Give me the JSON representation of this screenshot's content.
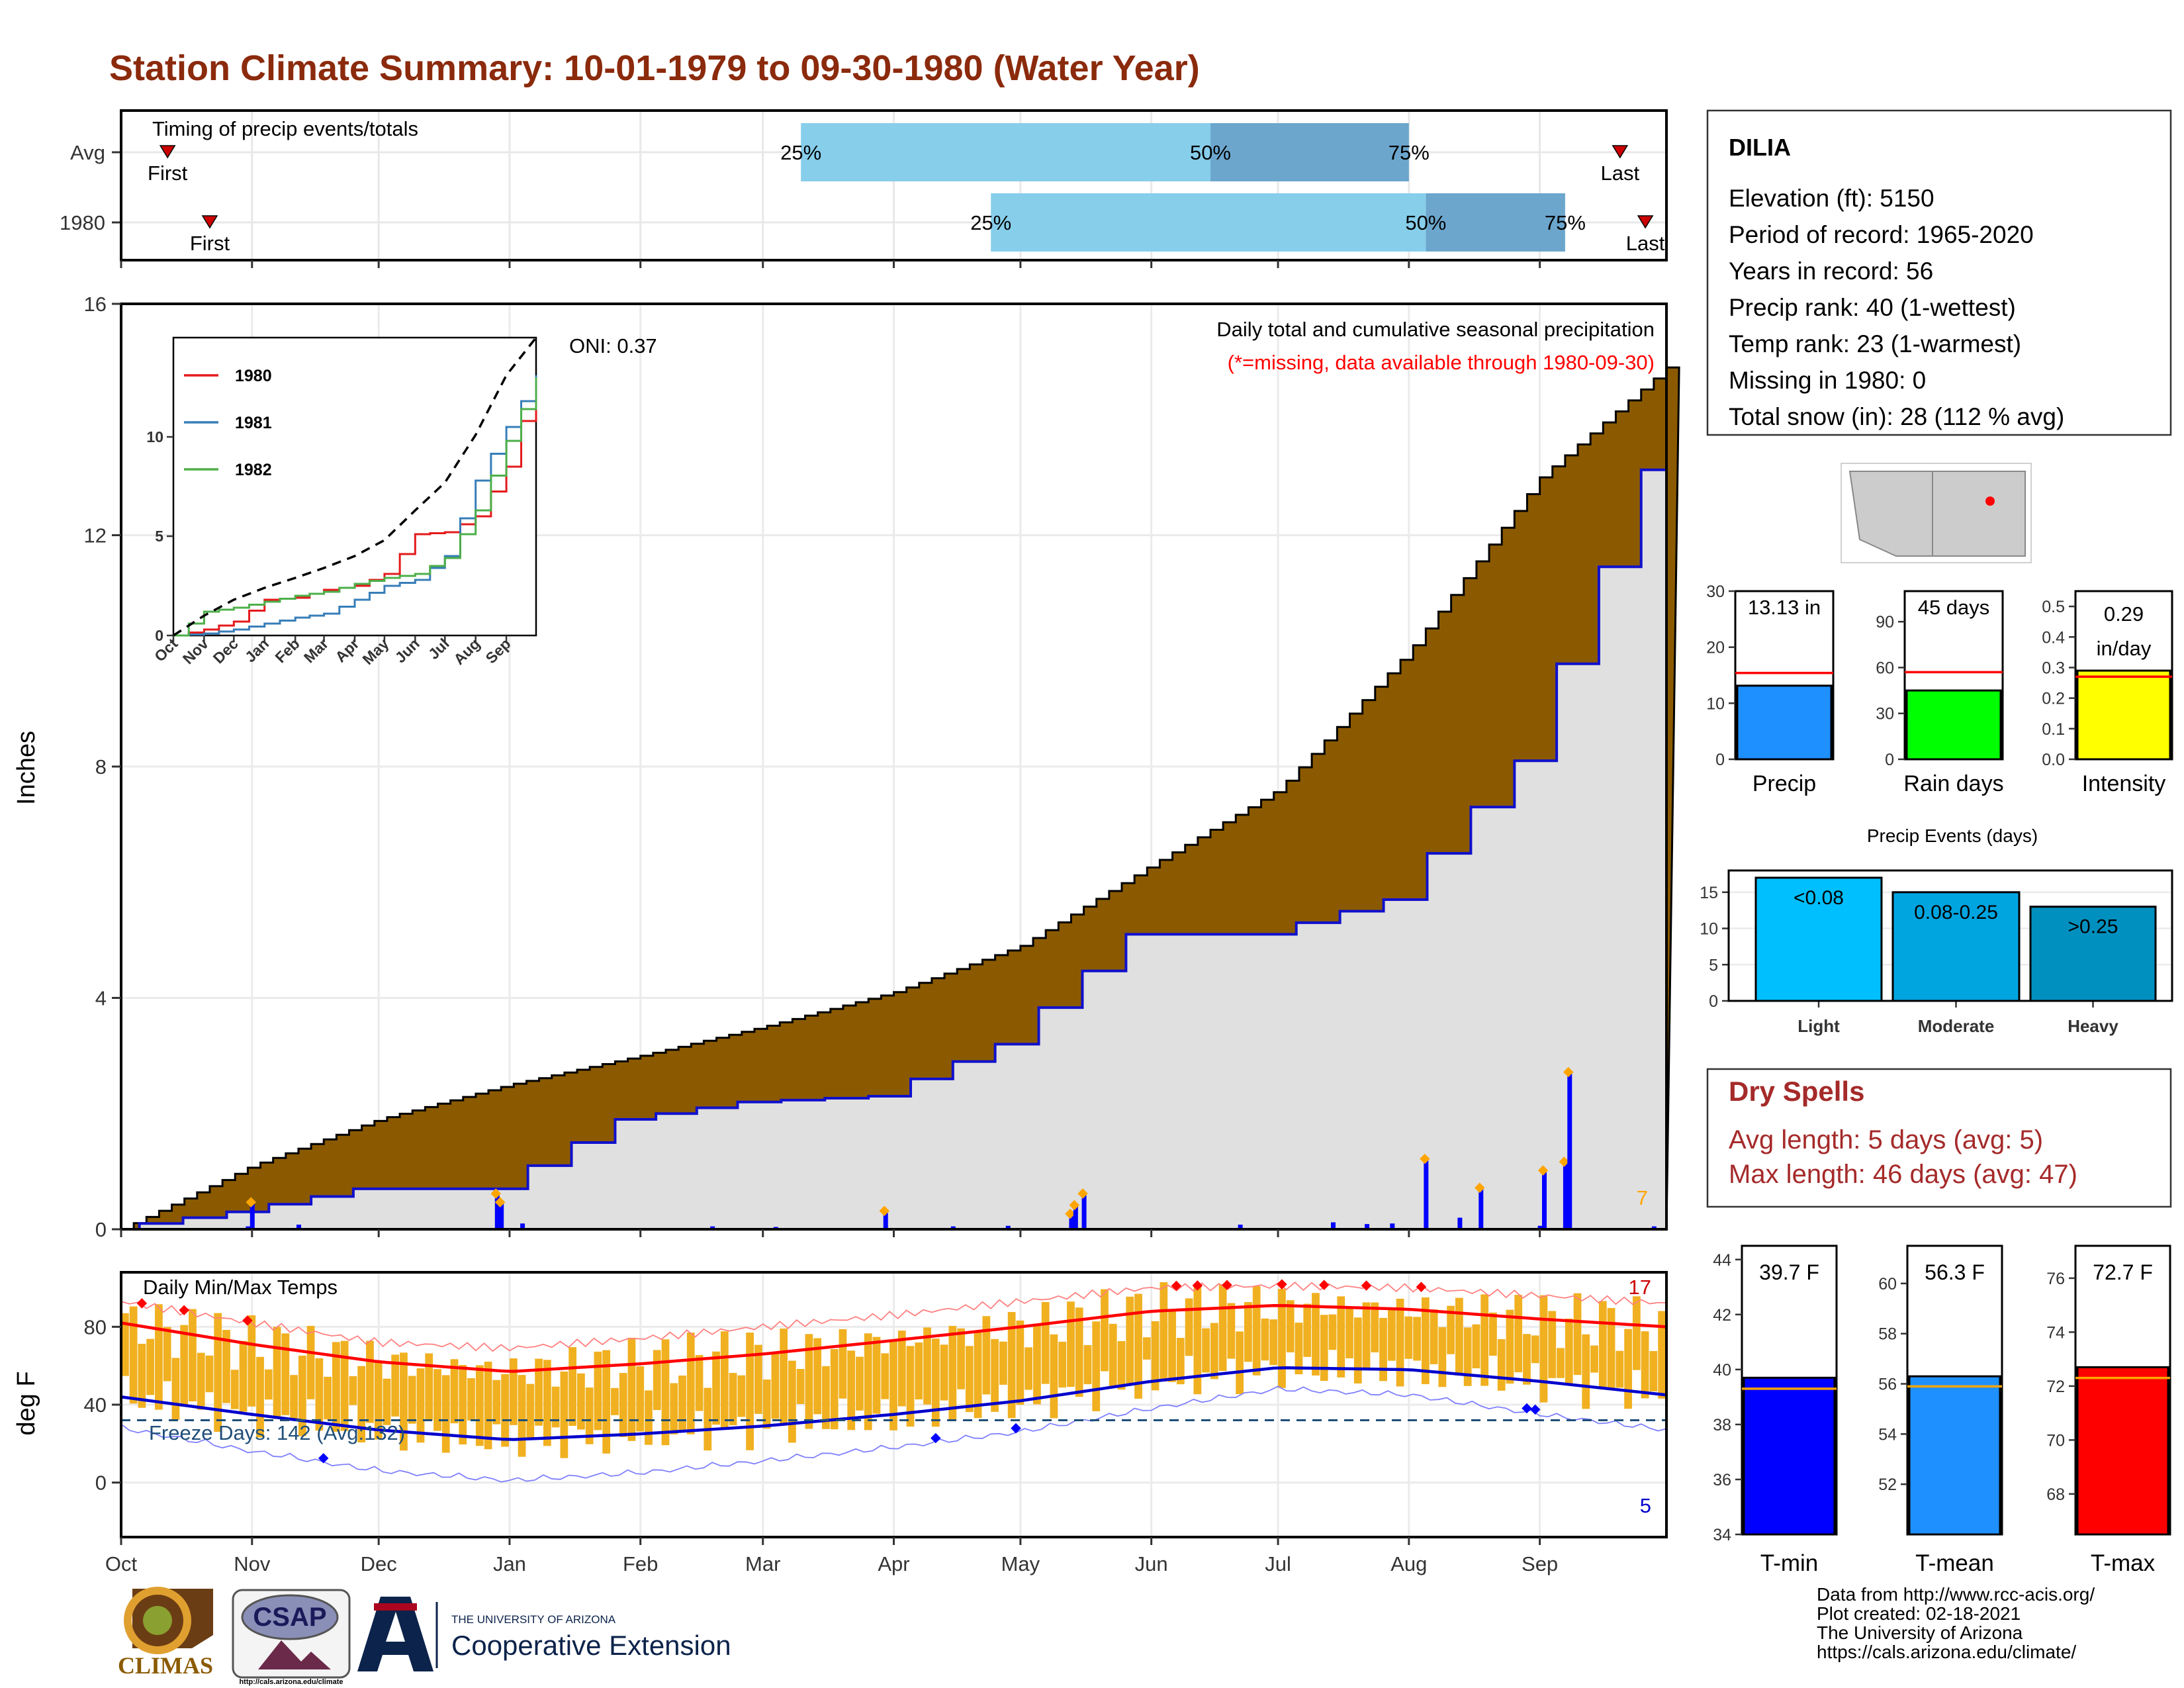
{
  "title": "Station Climate Summary: 10-01-1979 to 09-30-1980 (Water Year)",
  "timing": {
    "label": "Timing of precip events/totals",
    "rows": [
      {
        "name": "Avg",
        "first_label": "First",
        "last_label": "Last",
        "p25": "25%",
        "p50": "50%",
        "p75": "75%",
        "first": "Oct 12",
        "last": "Sep 20",
        "q25": "Mar 10",
        "q50": "Jun 15",
        "q75": "Aug 1"
      },
      {
        "name": "1980",
        "first_label": "First",
        "last_label": "Last",
        "p25": "25%",
        "p50": "50%",
        "p75": "75%",
        "first": "Oct 22",
        "last": "Sep 26",
        "q25": "Apr 24",
        "q50": "Aug 5",
        "q75": "Sep 7"
      }
    ]
  },
  "precip_panel": {
    "ylabel": "Inches",
    "yticks": [
      "0",
      "4",
      "8",
      "12",
      "16"
    ],
    "title": "Daily total and cumulative seasonal precipitation",
    "subtitle": "(*=missing, data available through 1980-09-30)",
    "oni": "ONI: 0.37",
    "corner_count": "7",
    "colors": {
      "avg_fill": "#8b5a00",
      "obs_fill": "#e0e0e0",
      "obs_line": "#1010cc",
      "daily_bar": "#0000ff",
      "extreme": "#ffa500",
      "subtitle": "#ff0000"
    }
  },
  "inset": {
    "series": [
      {
        "name": "1980",
        "color": "#e41a1c"
      },
      {
        "name": "1981",
        "color": "#377eb8"
      },
      {
        "name": "1982",
        "color": "#4daf4a"
      }
    ],
    "yticks": [
      "0",
      "5",
      "10"
    ],
    "xticks": [
      "Oct",
      "Nov",
      "Dec",
      "Jan",
      "Feb",
      "Mar",
      "Apr",
      "May",
      "Jun",
      "Jul",
      "Aug",
      "Sep"
    ]
  },
  "temp_panel": {
    "ylabel": "deg F",
    "label": "Daily Min/Max Temps",
    "yticks": [
      "0",
      "40",
      "80"
    ],
    "freeze": "Freeze Days: 142 (Avg:132)",
    "hot_count": "17",
    "cold_count": "5"
  },
  "xaxis": {
    "months": [
      "Oct",
      "Nov",
      "Dec",
      "Jan",
      "Feb",
      "Mar",
      "Apr",
      "May",
      "Jun",
      "Jul",
      "Aug",
      "Sep"
    ]
  },
  "station": {
    "name": "DILIA",
    "lines": [
      "Elevation (ft): 5150",
      "Period of record: 1965-2020",
      "Years in record: 56",
      "Precip rank: 40 (1-wettest)",
      "Temp rank: 23 (1-warmest)",
      "Missing in 1980: 0",
      "Total snow (in): 28 (112 % avg)"
    ]
  },
  "summary_bars": [
    {
      "label": "Precip",
      "value_text": "13.13 in",
      "value": 13.13,
      "avg": 15.4,
      "ymax": 30,
      "yticks": [
        "0",
        "10",
        "20",
        "30"
      ],
      "color": "#1e90ff"
    },
    {
      "label": "Rain days",
      "value_text": "45 days",
      "value": 45,
      "avg": 57,
      "ymax": 110,
      "yticks": [
        "0",
        "30",
        "60",
        "90"
      ],
      "color": "#00ff00"
    },
    {
      "label": "Intensity",
      "value_text_1": "0.29",
      "value_text_2": "in/day",
      "value": 0.29,
      "avg": 0.27,
      "ymax": 0.55,
      "yticks": [
        "0.0",
        "0.1",
        "0.2",
        "0.3",
        "0.4",
        "0.5"
      ],
      "color": "#ffff00"
    }
  ],
  "precip_events": {
    "title": "Precip Events (days)",
    "yticks": [
      "0",
      "5",
      "10",
      "15"
    ],
    "categories": [
      "Light",
      "Moderate",
      "Heavy"
    ],
    "labels": [
      "<0.08",
      "0.08-0.25",
      ">0.25"
    ],
    "values": [
      17,
      15,
      13
    ],
    "colors": [
      "#00bfff",
      "#00a5e0",
      "#0090c0"
    ]
  },
  "dry_spells": {
    "title": "Dry Spells",
    "avg_line": "Avg length: 5 days (avg: 5)",
    "max_line": "Max length: 46 days (avg: 47)"
  },
  "temp_bars": [
    {
      "label": "T-min",
      "value_text": "39.7 F",
      "value": 39.7,
      "avg": 39.3,
      "ymin": 34,
      "ymax": 44.5,
      "yticks": [
        "34",
        "36",
        "38",
        "40",
        "42",
        "44"
      ],
      "color": "#0000ff"
    },
    {
      "label": "T-mean",
      "value_text": "56.3 F",
      "value": 56.3,
      "avg": 55.9,
      "ymin": 50,
      "ymax": 61.5,
      "yticks": [
        "52",
        "54",
        "56",
        "58",
        "60"
      ],
      "color": "#1e90ff"
    },
    {
      "label": "T-max",
      "value_text": "72.7 F",
      "value": 72.7,
      "avg": 72.3,
      "ymin": 66.5,
      "ymax": 77.2,
      "yticks": [
        "68",
        "70",
        "72",
        "74",
        "76"
      ],
      "color": "#ff0000"
    }
  ],
  "logos": {
    "climas": "CLIMAS",
    "csap": "CSAP",
    "csap_url": "http://cals.arizona.edu/climate",
    "ua_small": "THE UNIVERSITY OF ARIZONA",
    "ua_big": "Cooperative Extension"
  },
  "footer": [
    "Data from http://www.rcc-acis.org/",
    "Plot created: 02-18-2021",
    "The University of Arizona",
    "https://cals.arizona.edu/climate/"
  ],
  "chart_data": [
    {
      "type": "area",
      "title": "Daily total and cumulative seasonal precipitation",
      "ylabel": "Inches",
      "ylim": [
        0,
        16
      ],
      "x": [
        "Oct",
        "Nov",
        "Dec",
        "Jan",
        "Feb",
        "Mar",
        "Apr",
        "May",
        "Jun",
        "Jul",
        "Aug",
        "Sep",
        "Sep 30"
      ],
      "series": [
        {
          "name": "Avg cumulative",
          "values": [
            0,
            1.1,
            1.9,
            2.5,
            3.0,
            3.5,
            4.1,
            4.9,
            6.3,
            7.6,
            10.0,
            13.0,
            14.9
          ]
        },
        {
          "name": "1980 cumulative",
          "values": [
            0,
            0.3,
            0.7,
            0.7,
            1.9,
            2.2,
            2.3,
            3.2,
            5.1,
            5.1,
            5.7,
            8.1,
            13.13
          ]
        }
      ],
      "daily_events": [
        {
          "date": "Nov 1",
          "value": 0.45
        },
        {
          "date": "Dec 29",
          "value": 0.6
        },
        {
          "date": "Dec 30",
          "value": 0.45
        },
        {
          "date": "Mar 30",
          "value": 0.3
        },
        {
          "date": "Apr 15",
          "value": 0.05
        },
        {
          "date": "May 13",
          "value": 0.25
        },
        {
          "date": "May 14",
          "value": 0.4
        },
        {
          "date": "May 16",
          "value": 0.6
        },
        {
          "date": "Aug 5",
          "value": 1.2
        },
        {
          "date": "Aug 13",
          "value": 0.2
        },
        {
          "date": "Aug 18",
          "value": 0.7
        },
        {
          "date": "Sep 2",
          "value": 1.0
        },
        {
          "date": "Sep 7",
          "value": 1.15
        },
        {
          "date": "Sep 8",
          "value": 2.7
        }
      ]
    },
    {
      "type": "line",
      "title": "",
      "xlabel": "",
      "ylabel": "",
      "ylim": [
        0,
        15
      ],
      "x": [
        "Oct",
        "Nov",
        "Dec",
        "Jan",
        "Feb",
        "Mar",
        "Apr",
        "May",
        "Jun",
        "Jul",
        "Aug",
        "Sep",
        "Sep 30"
      ],
      "series": [
        {
          "name": "1980",
          "values": [
            0,
            0.3,
            0.7,
            1.8,
            1.9,
            2.3,
            2.5,
            3.1,
            5.1,
            5.2,
            6.0,
            8.5,
            13.1
          ]
        },
        {
          "name": "1981",
          "values": [
            0,
            0.1,
            0.3,
            0.6,
            0.9,
            1.1,
            1.8,
            2.5,
            2.8,
            4.0,
            7.8,
            10.5,
            13.1
          ]
        },
        {
          "name": "1982",
          "values": [
            0,
            1.2,
            1.4,
            1.7,
            2.0,
            2.2,
            2.6,
            2.9,
            3.1,
            3.9,
            6.3,
            9.8,
            13.0
          ]
        },
        {
          "name": "Avg",
          "values": [
            0,
            1.0,
            1.8,
            2.4,
            2.9,
            3.4,
            4.0,
            4.8,
            6.3,
            7.7,
            10.1,
            13.1,
            15.0
          ]
        }
      ]
    },
    {
      "type": "line",
      "title": "Daily Min/Max Temps",
      "ylabel": "deg F",
      "ylim": [
        -28,
        108
      ],
      "x": [
        "Oct",
        "Nov",
        "Dec",
        "Jan",
        "Feb",
        "Mar",
        "Apr",
        "May",
        "Jun",
        "Jul",
        "Aug",
        "Sep",
        "Sep 30"
      ],
      "series": [
        {
          "name": "Avg max",
          "values": [
            82,
            71,
            62,
            57,
            61,
            66,
            73,
            80,
            88,
            91,
            89,
            84,
            80
          ]
        },
        {
          "name": "Avg min",
          "values": [
            44,
            35,
            27,
            22,
            25,
            29,
            35,
            42,
            52,
            59,
            58,
            52,
            45
          ]
        },
        {
          "name": "Record max",
          "values": [
            93,
            82,
            72,
            69,
            74,
            80,
            86,
            93,
            100,
            101,
            100,
            96,
            92
          ]
        },
        {
          "name": "Record min",
          "values": [
            30,
            18,
            8,
            3,
            7,
            13,
            20,
            28,
            40,
            50,
            47,
            37,
            29
          ]
        }
      ],
      "freeze_threshold": 32
    },
    {
      "type": "bar",
      "categories": [
        "Precip",
        "Rain days",
        "Intensity"
      ],
      "values": [
        13.13,
        45,
        0.29
      ]
    },
    {
      "type": "bar",
      "title": "Precip Events (days)",
      "categories": [
        "Light",
        "Moderate",
        "Heavy"
      ],
      "values": [
        17,
        15,
        13
      ]
    },
    {
      "type": "bar",
      "categories": [
        "T-min",
        "T-mean",
        "T-max"
      ],
      "values": [
        39.7,
        56.3,
        72.7
      ]
    }
  ]
}
